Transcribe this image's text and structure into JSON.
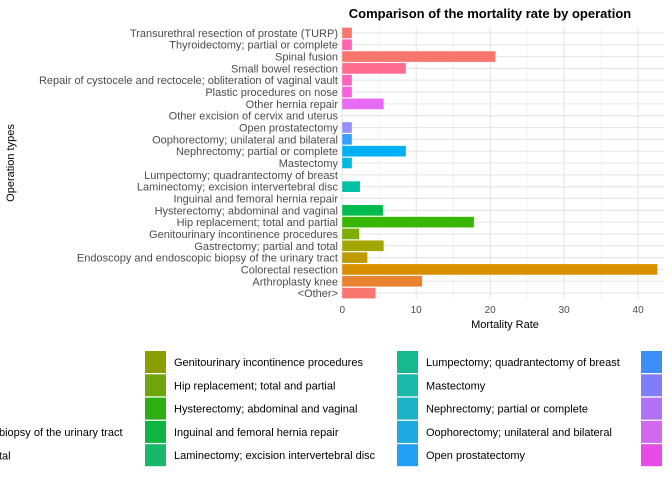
{
  "chart_data": {
    "type": "bar",
    "orientation": "horizontal",
    "title": "Comparison of the mortality rate by operation",
    "xlabel": "Mortality Rate",
    "ylabel": "Operation types",
    "xlim": [
      -0.3,
      43.5
    ],
    "xticks": [
      0,
      10,
      20,
      30,
      40
    ],
    "grid": true,
    "legend_position": "bottom",
    "categories": [
      "<Other>",
      "Arthroplasty knee",
      "Colorectal resection",
      "Endoscopy and endoscopic biopsy of the urinary tract",
      "Gastrectomy; partial and total",
      "Genitourinary incontinence procedures",
      "Hip replacement; total and partial",
      "Hysterectomy; abdominal and vaginal",
      "Inguinal and femoral hernia repair",
      "Laminectomy; excision intervertebral disc",
      "Lumpectomy; quadrantectomy of breast",
      "Mastectomy",
      "Nephrectomy; partial or complete",
      "Oophorectomy; unilateral and bilateral",
      "Open prostatectomy",
      "Other excision of cervix and uterus",
      "Other hernia repair",
      "Plastic procedures on nose",
      "Repair of cystocele and rectocele; obliteration of vaginal vault",
      "Small bowel resection",
      "Spinal fusion",
      "Thyroidectomy; partial or complete",
      "Transurethral resection of prostate (TURP)"
    ],
    "values": [
      4.5,
      10.8,
      42.6,
      3.4,
      5.6,
      2.3,
      17.8,
      5.5,
      0,
      2.4,
      0,
      1.3,
      8.6,
      1.3,
      1.3,
      0,
      5.6,
      1.3,
      1.3,
      8.6,
      20.7,
      1.3,
      1.3
    ],
    "colors": [
      "#F8766D",
      "#EA8331",
      "#D89000",
      "#C09B00",
      "#A3A500",
      "#7CAE00",
      "#39B600",
      "#00BB4E",
      "#00BF7D",
      "#00C1A3",
      "#00BFC4",
      "#00BAE0",
      "#00B0F6",
      "#35A2FF",
      "#9590FF",
      "#C77CFF",
      "#E76BF3",
      "#FA62DB",
      "#FF62BC",
      "#FF6C90",
      "#F8766D",
      "#FF64B0",
      "#F8766D"
    ],
    "legend_visible": [
      {
        "label": "biopsy of the urinary tract",
        "color": "#C09B00"
      },
      {
        "label": "tal",
        "color": "#A3A500"
      },
      {
        "label": "Genitourinary incontinence procedures",
        "color": "#8B9E00"
      },
      {
        "label": "Hip replacement; total and partial",
        "color": "#6DA60C"
      },
      {
        "label": "Hysterectomy; abdominal and vaginal",
        "color": "#2EAE13"
      },
      {
        "label": "Inguinal and femoral hernia repair",
        "color": "#10B440"
      },
      {
        "label": "Laminectomy; excision intervertebral disc",
        "color": "#17B86A"
      },
      {
        "label": "Lumpectomy; quadrantectomy of breast",
        "color": "#16B890"
      },
      {
        "label": "Mastectomy",
        "color": "#19B9AC"
      },
      {
        "label": "Nephrectomy; partial or complete",
        "color": "#1CB4C5"
      },
      {
        "label": "Oophorectomy; unilateral and bilateral",
        "color": "#1EAAE0"
      },
      {
        "label": "Open prostatectomy",
        "color": "#1FA0F4"
      },
      {
        "label": "",
        "color": "#3C8DF8"
      },
      {
        "label": "",
        "color": "#7F7DF8"
      },
      {
        "label": "",
        "color": "#B171F4"
      },
      {
        "label": "",
        "color": "#D367EE"
      },
      {
        "label": "",
        "color": "#E74BE8"
      }
    ]
  }
}
